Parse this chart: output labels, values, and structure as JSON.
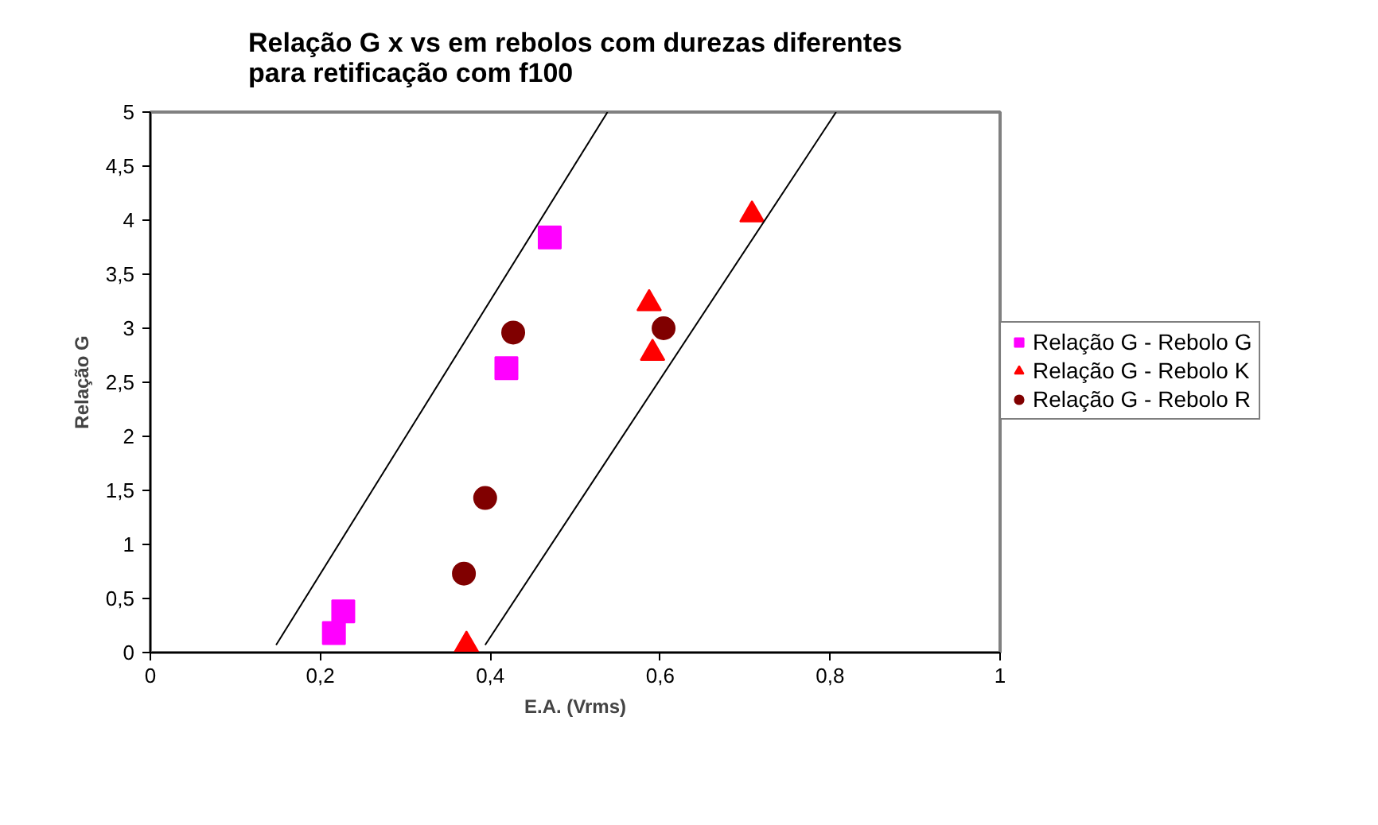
{
  "chart_data": {
    "type": "scatter",
    "title": "Relação G x vs em rebolos com durezas diferentes\npara retificação com f100",
    "xlabel": "E.A. (Vrms)",
    "ylabel": "Relação G",
    "xlim": [
      0,
      1
    ],
    "ylim": [
      0,
      5
    ],
    "xticks": [
      0,
      {
        "value": 0.2,
        "label": "0,2"
      },
      {
        "value": 0.4,
        "label": "0,4"
      },
      {
        "value": 0.6,
        "label": "0,6"
      },
      {
        "value": 0.8,
        "label": "0,8"
      },
      1
    ],
    "yticks": [
      0,
      {
        "value": 0.5,
        "label": "0,5"
      },
      1,
      {
        "value": 1.5,
        "label": "1,5"
      },
      2,
      {
        "value": 2.5,
        "label": "2,5"
      },
      3,
      {
        "value": 3.5,
        "label": "3,5"
      },
      4,
      {
        "value": 4.5,
        "label": "4,5"
      },
      5
    ],
    "grid": false,
    "legend": "right",
    "series": [
      {
        "name": "Relação G - Rebolo G",
        "color": "#ff00ff",
        "marker": "square",
        "x": [
          0.216,
          0.227,
          0.419,
          0.47
        ],
        "values": [
          0.18,
          0.38,
          2.63,
          3.84
        ]
      },
      {
        "name": "Relação G - Rebolo K",
        "color": "#ff0000",
        "marker": "triangle",
        "x": [
          0.372,
          0.587,
          0.591,
          0.708
        ],
        "values": [
          0.07,
          3.23,
          2.77,
          4.05
        ]
      },
      {
        "name": "Relação G - Rebolo R",
        "color": "#800000",
        "marker": "circle",
        "x": [
          0.369,
          0.394,
          0.427,
          0.604
        ],
        "values": [
          0.73,
          1.43,
          2.96,
          3.0
        ]
      },
      {
        "type": "line",
        "color": "#000000",
        "marker": "none",
        "x": [
          0.148,
          0.538
        ],
        "values": [
          0.07,
          5
        ]
      },
      {
        "type": "line",
        "color": "#000000",
        "marker": "none",
        "x": [
          0.394,
          0.807
        ],
        "values": [
          0.07,
          5
        ]
      }
    ]
  }
}
